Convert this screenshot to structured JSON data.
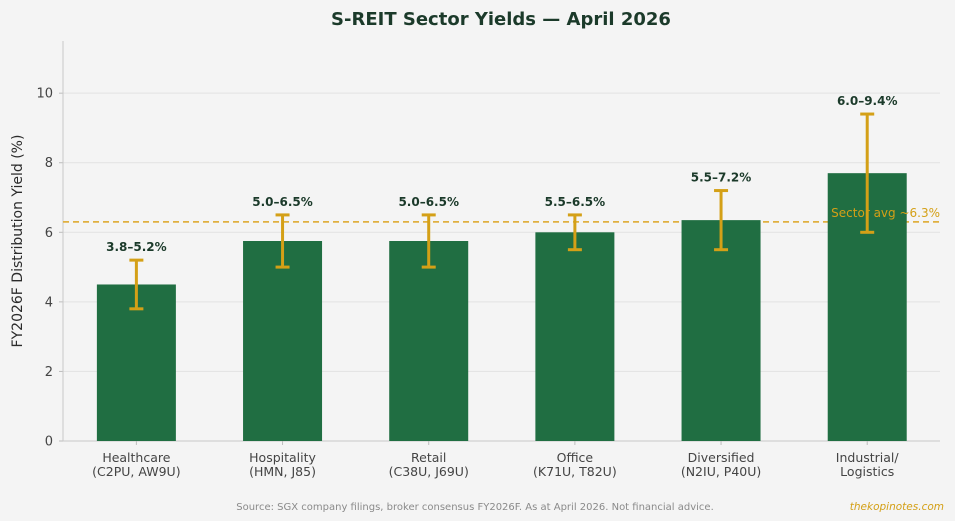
{
  "chart_data": {
    "type": "bar",
    "title": "S-REIT Sector Yields — April 2026",
    "xlabel": "",
    "ylabel": "FY2026F Distribution Yield (%)",
    "ylim": [
      0,
      11.5
    ],
    "yticks": [
      0,
      2,
      4,
      6,
      8,
      10
    ],
    "grid": true,
    "categories": [
      [
        "Healthcare",
        "(C2PU, AW9U)"
      ],
      [
        "Hospitality",
        "(HMN, J85)"
      ],
      [
        "Retail",
        "(C38U, J69U)"
      ],
      [
        "Office",
        "(K71U, T82U)"
      ],
      [
        "Diversified",
        "(N2IU, P40U)"
      ],
      [
        "Industrial/",
        "Logistics"
      ]
    ],
    "values": [
      4.5,
      5.75,
      5.75,
      6.0,
      6.35,
      7.7
    ],
    "error_ranges": [
      [
        3.8,
        5.2
      ],
      [
        5.0,
        6.5
      ],
      [
        5.0,
        6.5
      ],
      [
        5.5,
        6.5
      ],
      [
        5.5,
        7.2
      ],
      [
        6.0,
        9.4
      ]
    ],
    "data_labels": [
      "3.8–5.2%",
      "5.0–6.5%",
      "5.0–6.5%",
      "5.5–6.5%",
      "5.5–7.2%",
      "6.0–9.4%"
    ],
    "reference_line": {
      "value": 6.3,
      "label": "Sector avg ~6.3%"
    },
    "colors": {
      "bar": "#206e42",
      "error": "#d4a017",
      "avg": "#e0b040"
    }
  },
  "footer": {
    "source": "Source: SGX company filings, broker consensus FY2026F. As at April 2026. Not financial advice.",
    "credit": "thekopinotes.com"
  }
}
